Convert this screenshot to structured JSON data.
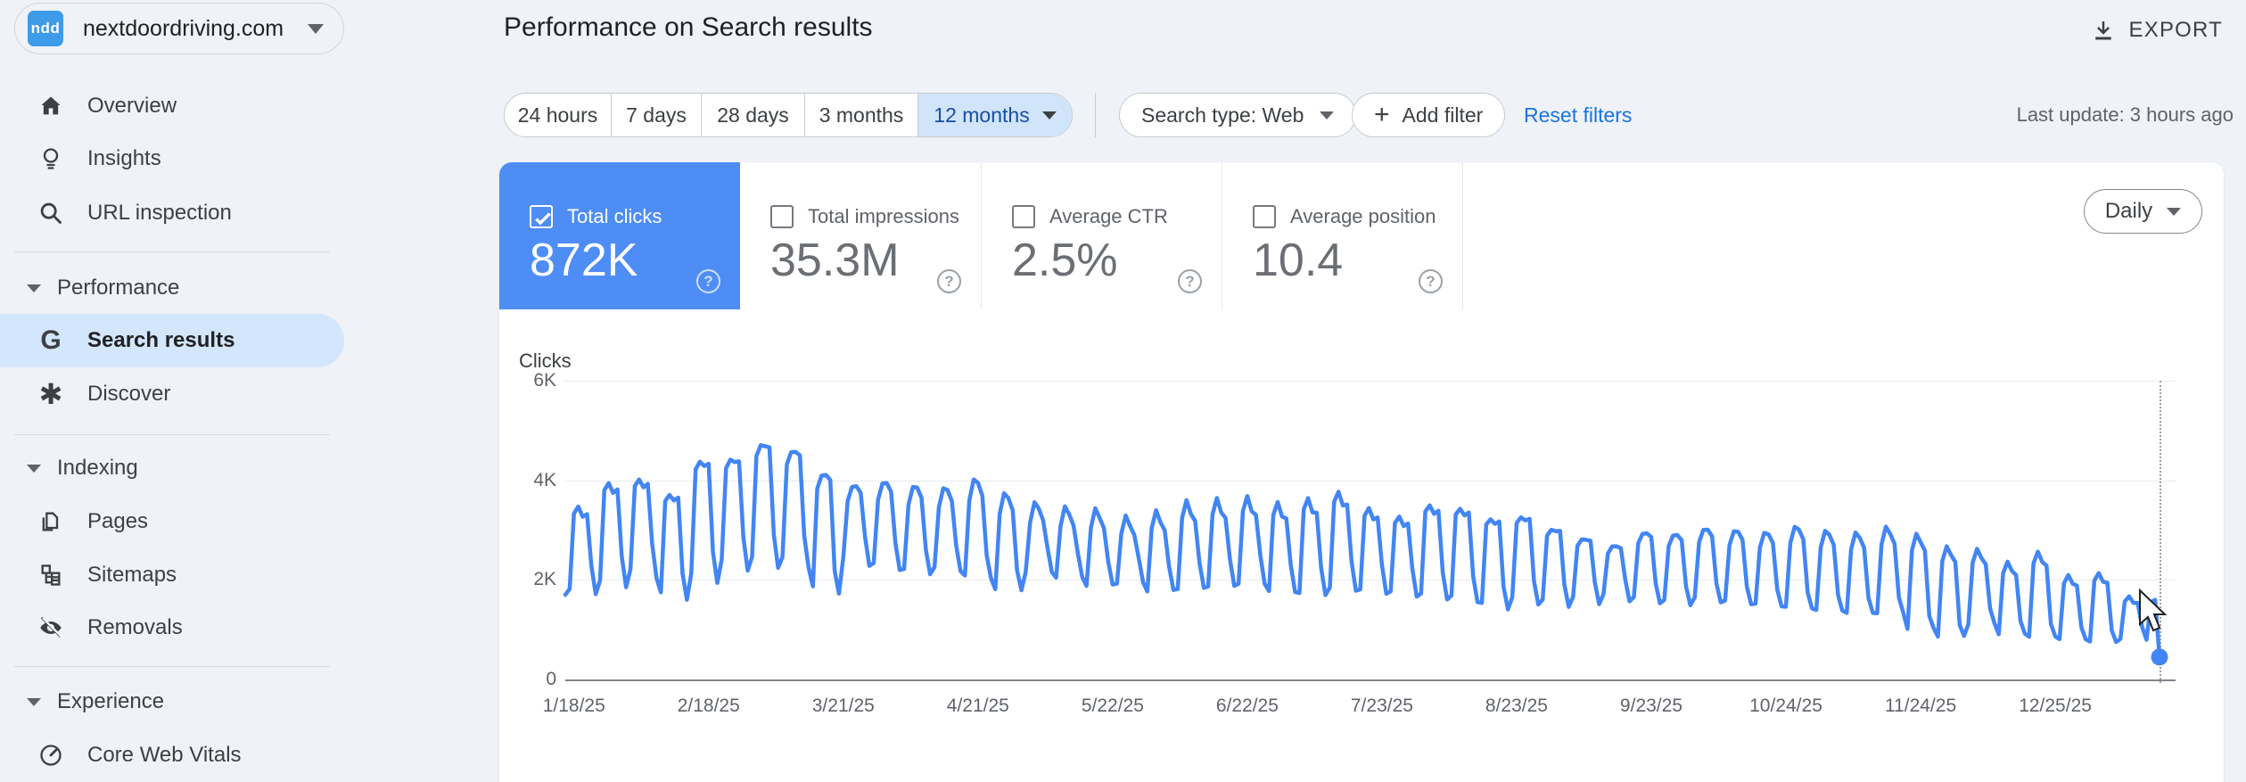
{
  "sidebar": {
    "property": {
      "name": "nextdoordriving.com",
      "favicon_text": "ndd"
    },
    "items": [
      {
        "label": "Overview"
      },
      {
        "label": "Insights"
      },
      {
        "label": "URL inspection"
      },
      {
        "label": "Performance"
      },
      {
        "label": "Search results"
      },
      {
        "label": "Discover"
      },
      {
        "label": "Indexing"
      },
      {
        "label": "Pages"
      },
      {
        "label": "Sitemaps"
      },
      {
        "label": "Removals"
      },
      {
        "label": "Experience"
      },
      {
        "label": "Core Web Vitals"
      }
    ]
  },
  "header": {
    "title": "Performance on Search results",
    "export_label": "EXPORT"
  },
  "filters": {
    "date_ranges": [
      "24 hours",
      "7 days",
      "28 days",
      "3 months",
      "12 months"
    ],
    "selected_date_range": "12 months",
    "search_type": "Search type: Web",
    "add_filter_label": "Add filter",
    "reset_filters_label": "Reset filters",
    "last_update": "Last update: 3 hours ago"
  },
  "metrics": {
    "granularity": "Daily",
    "cards": [
      {
        "label": "Total clicks",
        "value": "872K",
        "checked": true,
        "selected": true
      },
      {
        "label": "Total impressions",
        "value": "35.3M",
        "checked": false,
        "selected": false
      },
      {
        "label": "Average CTR",
        "value": "2.5%",
        "checked": false,
        "selected": false
      },
      {
        "label": "Average position",
        "value": "10.4",
        "checked": false,
        "selected": false
      }
    ]
  },
  "chart_data": {
    "type": "line",
    "title": "Clicks",
    "series_name": "Total clicks (daily)",
    "ylabel": "Clicks",
    "ylim": [
      0,
      6000
    ],
    "y_ticks": [
      {
        "value": 6,
        "label": "6K"
      },
      {
        "value": 4,
        "label": "4K"
      },
      {
        "value": 2,
        "label": "2K"
      },
      {
        "value": 0,
        "label": "0"
      }
    ],
    "x_tick_labels": [
      "1/18/25",
      "2/18/25",
      "3/21/25",
      "4/21/25",
      "5/22/25",
      "6/22/25",
      "7/23/25",
      "8/23/25",
      "9/23/25",
      "10/24/25",
      "11/24/25",
      "12/25/25"
    ],
    "x_tick_day_offsets": [
      2,
      33,
      64,
      95,
      126,
      157,
      188,
      219,
      250,
      281,
      312,
      343
    ],
    "grid": true,
    "legend": "none",
    "pattern": "weekly oscillation: weekday plateau near peak, weekend drop to trough",
    "start_value_k": 1.7,
    "weekly_envelope": {
      "peaks_k": [
        3.5,
        4.0,
        4.1,
        3.8,
        4.5,
        4.55,
        4.85,
        4.7,
        4.2,
        3.95,
        4.0,
        3.9,
        3.85,
        4.0,
        3.7,
        3.5,
        3.4,
        3.35,
        3.2,
        3.3,
        3.5,
        3.55,
        3.6,
        3.5,
        3.6,
        3.75,
        3.45,
        3.3,
        3.55,
        3.5,
        3.3,
        3.35,
        3.1,
        2.9,
        2.75,
        3.0,
        2.95,
        3.05,
        3.0,
        2.95,
        3.05,
        2.95,
        2.9,
        3.0,
        2.85,
        2.6,
        2.55,
        2.3,
        2.5,
        2.05,
        2.1,
        1.65
      ],
      "troughs_k": [
        1.75,
        1.9,
        2.1,
        1.65,
        2.0,
        2.25,
        2.3,
        2.3,
        1.75,
        2.3,
        2.2,
        2.1,
        2.15,
        2.0,
        1.75,
        2.1,
        2.0,
        1.85,
        1.9,
        1.75,
        1.8,
        1.85,
        1.9,
        1.75,
        1.7,
        1.8,
        1.75,
        1.7,
        1.65,
        1.6,
        1.45,
        1.55,
        1.5,
        1.55,
        1.6,
        1.55,
        1.5,
        1.55,
        1.5,
        1.45,
        1.4,
        1.35,
        1.3,
        1.3,
        1.0,
        0.85,
        1.1,
        0.9,
        0.85,
        0.8,
        0.75,
        0.8
      ],
      "weeks": 52
    },
    "tail_values_k": [
      1.55,
      1.6,
      0.45
    ],
    "end_dot_value_k": 0.45,
    "hover_indicator": {
      "visible": true,
      "at_last_point": true
    }
  },
  "colors": {
    "page_bg": "#eff2f6",
    "card_blue": "#4e8df6",
    "line_blue": "#4285f4",
    "selected_nav_bg": "#d3e6fb",
    "selected_chip_bg": "#d0e4fa",
    "chip_selected_text": "#174ea6",
    "link_blue": "#1a73e8"
  }
}
